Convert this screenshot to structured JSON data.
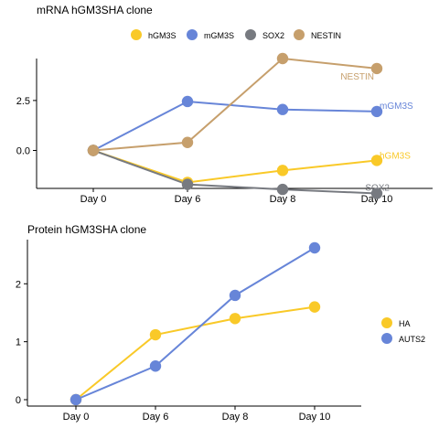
{
  "chart_data": [
    {
      "type": "line",
      "title": "mRNA hGM3SHA clone",
      "categories": [
        "Day 0",
        "Day 6",
        "Day 8",
        "Day 10"
      ],
      "ylim": [
        -1.9,
        4.6
      ],
      "yticks": [
        0.0,
        2.5
      ],
      "ytick_labels": [
        "0.0",
        "2.5"
      ],
      "legend_position": "top",
      "grid": false,
      "series": [
        {
          "name": "hGM3S",
          "color": "#F9C928",
          "values": [
            0.0,
            -1.6,
            -1.0,
            -0.5
          ],
          "end_label": "hGM3S"
        },
        {
          "name": "mGM3S",
          "color": "#6785D8",
          "values": [
            0.0,
            2.45,
            2.05,
            1.95
          ],
          "end_label": "mGM3S"
        },
        {
          "name": "SOX2",
          "color": "#777A80",
          "values": [
            0.0,
            -1.7,
            -1.95,
            -2.15
          ],
          "end_label": "SOX2"
        },
        {
          "name": "NESTIN",
          "color": "#C69F6C",
          "values": [
            0.0,
            0.4,
            4.6,
            4.1
          ],
          "end_label": "NESTIN"
        }
      ]
    },
    {
      "type": "line",
      "title": "Protein hGM3SHA clone",
      "categories": [
        "Day 0",
        "Day 6",
        "Day 8",
        "Day 10"
      ],
      "ylim": [
        0,
        2.62
      ],
      "yticks": [
        0,
        1,
        2
      ],
      "ytick_labels": [
        "0",
        "1",
        "2"
      ],
      "legend_position": "right",
      "grid": false,
      "series": [
        {
          "name": "HA",
          "color": "#F9C928",
          "values": [
            0.0,
            1.12,
            1.4,
            1.6
          ]
        },
        {
          "name": "AUTS2",
          "color": "#6785D8",
          "values": [
            0.0,
            0.58,
            1.8,
            2.62
          ]
        }
      ]
    }
  ]
}
